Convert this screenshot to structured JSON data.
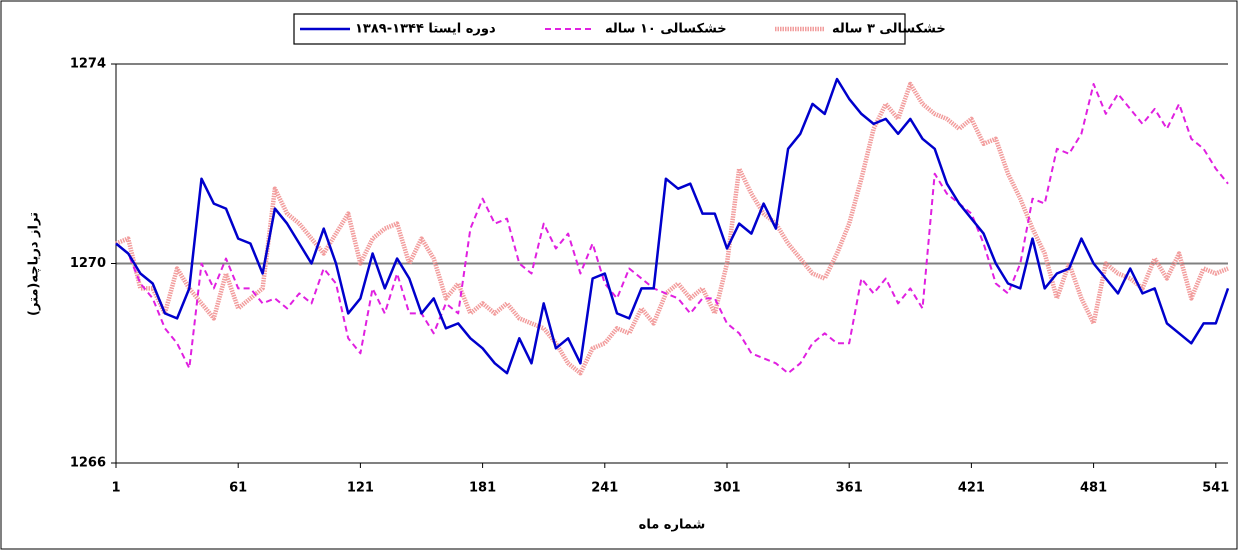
{
  "chart_data": {
    "type": "line",
    "x_label": "شماره ماه",
    "y_label": "تراز دریاچه(متر)",
    "xlim": [
      1,
      547
    ],
    "xticks": [
      1,
      61,
      121,
      181,
      241,
      301,
      361,
      421,
      481,
      541
    ],
    "ylim": [
      1266,
      1274
    ],
    "yticks": [
      1266,
      1270,
      1274
    ],
    "grid": true,
    "x": [
      1,
      7,
      13,
      19,
      25,
      31,
      37,
      43,
      49,
      55,
      61,
      67,
      73,
      79,
      85,
      91,
      97,
      103,
      109,
      115,
      121,
      127,
      133,
      139,
      145,
      151,
      157,
      163,
      169,
      175,
      181,
      187,
      193,
      199,
      205,
      211,
      217,
      223,
      229,
      235,
      241,
      247,
      253,
      259,
      265,
      271,
      277,
      283,
      289,
      295,
      301,
      307,
      313,
      319,
      325,
      331,
      337,
      343,
      349,
      355,
      361,
      367,
      373,
      379,
      385,
      391,
      397,
      403,
      409,
      415,
      421,
      427,
      433,
      439,
      445,
      451,
      457,
      463,
      469,
      475,
      481,
      487,
      493,
      499,
      505,
      511,
      517,
      523,
      529,
      535,
      541,
      547
    ],
    "series": [
      {
        "name": "دوره ایستا ۱۳۴۴-۱۳۸۹",
        "color": "#0000cc",
        "style": "solid",
        "values": [
          1270.4,
          1270.2,
          1269.8,
          1269.6,
          1269.0,
          1268.9,
          1269.5,
          1271.7,
          1271.2,
          1271.1,
          1270.5,
          1270.4,
          1269.8,
          1271.1,
          1270.8,
          1270.4,
          1270.0,
          1270.7,
          1270.0,
          1269.0,
          1269.3,
          1270.2,
          1269.5,
          1270.1,
          1269.7,
          1269.0,
          1269.3,
          1268.7,
          1268.8,
          1268.5,
          1268.3,
          1268.0,
          1267.8,
          1268.5,
          1268.0,
          1269.2,
          1268.3,
          1268.5,
          1268.0,
          1269.7,
          1269.8,
          1269.0,
          1268.9,
          1269.5,
          1269.5,
          1271.7,
          1271.5,
          1271.6,
          1271.0,
          1271.0,
          1270.3,
          1270.8,
          1270.6,
          1271.2,
          1270.7,
          1272.3,
          1272.6,
          1273.2,
          1273.0,
          1273.7,
          1273.3,
          1273.0,
          1272.8,
          1272.9,
          1272.6,
          1272.9,
          1272.5,
          1272.3,
          1271.6,
          1271.2,
          1270.9,
          1270.6,
          1270.0,
          1269.6,
          1269.5,
          1270.5,
          1269.5,
          1269.8,
          1269.9,
          1270.5,
          1270.0,
          1269.7,
          1269.4,
          1269.9,
          1269.4,
          1269.5,
          1268.8,
          1268.6,
          1268.4,
          1268.8,
          1268.8,
          1269.5
        ]
      },
      {
        "name": "خشکسالی ۱۰ ساله",
        "color": "#e020e0",
        "style": "dashed",
        "values": [
          1270.4,
          1270.2,
          1269.6,
          1269.3,
          1268.7,
          1268.4,
          1267.9,
          1270.0,
          1269.5,
          1270.1,
          1269.5,
          1269.5,
          1269.2,
          1269.3,
          1269.1,
          1269.4,
          1269.2,
          1269.9,
          1269.6,
          1268.5,
          1268.2,
          1269.5,
          1269.0,
          1269.8,
          1269.0,
          1269.0,
          1268.6,
          1269.2,
          1269.0,
          1270.7,
          1271.3,
          1270.8,
          1270.9,
          1270.0,
          1269.8,
          1270.8,
          1270.3,
          1270.6,
          1269.8,
          1270.4,
          1269.6,
          1269.3,
          1269.9,
          1269.7,
          1269.5,
          1269.4,
          1269.3,
          1269.0,
          1269.3,
          1269.3,
          1268.8,
          1268.6,
          1268.2,
          1268.1,
          1268.0,
          1267.8,
          1268.0,
          1268.4,
          1268.6,
          1268.4,
          1268.4,
          1269.7,
          1269.4,
          1269.7,
          1269.2,
          1269.5,
          1269.1,
          1271.8,
          1271.4,
          1271.2,
          1271.0,
          1270.4,
          1269.6,
          1269.4,
          1270.0,
          1271.3,
          1271.2,
          1272.3,
          1272.2,
          1272.6,
          1273.6,
          1273.0,
          1273.4,
          1273.1,
          1272.8,
          1273.1,
          1272.7,
          1273.2,
          1272.5,
          1272.3,
          1271.9,
          1271.6
        ]
      },
      {
        "name": "خشکسالی ۳ ساله",
        "color": "#f08c8c",
        "style": "dotted",
        "values": [
          1270.4,
          1270.5,
          1269.5,
          1269.5,
          1269.0,
          1269.9,
          1269.5,
          1269.2,
          1268.9,
          1269.8,
          1269.1,
          1269.3,
          1269.5,
          1271.5,
          1271.0,
          1270.8,
          1270.5,
          1270.2,
          1270.6,
          1271.0,
          1270.0,
          1270.5,
          1270.7,
          1270.8,
          1270.0,
          1270.5,
          1270.1,
          1269.3,
          1269.6,
          1269.0,
          1269.2,
          1269.0,
          1269.2,
          1268.9,
          1268.8,
          1268.7,
          1268.4,
          1268.0,
          1267.8,
          1268.3,
          1268.4,
          1268.7,
          1268.6,
          1269.1,
          1268.8,
          1269.4,
          1269.6,
          1269.3,
          1269.5,
          1269.0,
          1270.0,
          1271.9,
          1271.4,
          1271.0,
          1270.8,
          1270.4,
          1270.1,
          1269.8,
          1269.7,
          1270.2,
          1270.8,
          1271.7,
          1272.7,
          1273.2,
          1272.9,
          1273.6,
          1273.2,
          1273.0,
          1272.9,
          1272.7,
          1272.9,
          1272.4,
          1272.5,
          1271.8,
          1271.3,
          1270.7,
          1270.2,
          1269.3,
          1270.0,
          1269.3,
          1268.8,
          1270.0,
          1269.8,
          1269.7,
          1269.5,
          1270.1,
          1269.7,
          1270.2,
          1269.3,
          1269.9,
          1269.8,
          1269.9
        ]
      }
    ]
  }
}
